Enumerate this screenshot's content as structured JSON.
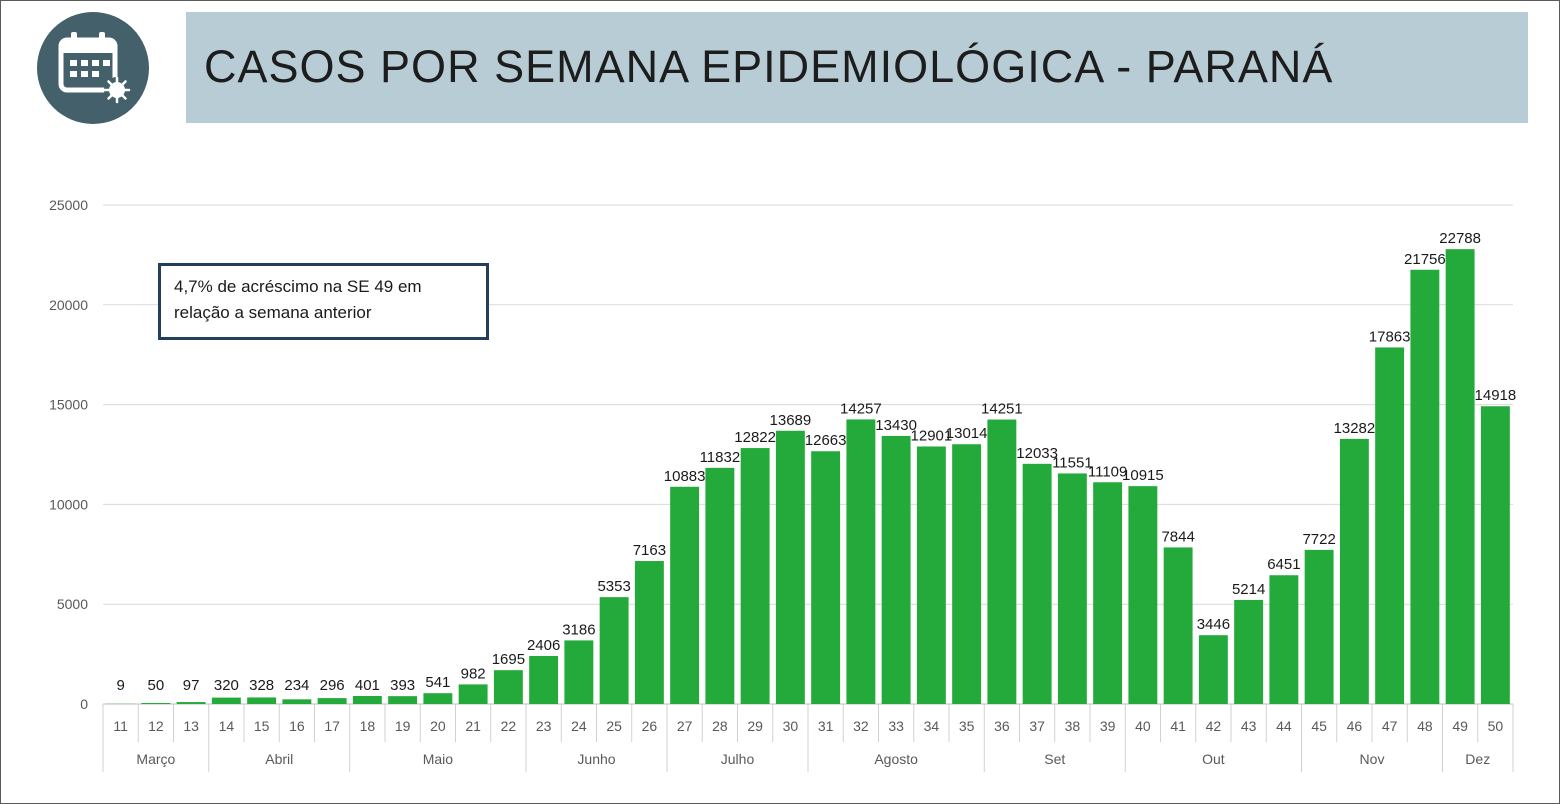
{
  "header": {
    "title": "CASOS POR SEMANA EPIDEMIOLÓGICA - PARANÁ",
    "icon": "calendar-virus-icon",
    "title_bg": "#b7ccd5",
    "icon_bg": "#44606a"
  },
  "annotation": {
    "text": "4,7% de acréscimo na SE 49 em relação a semana anterior"
  },
  "chart_data": {
    "type": "bar",
    "bar_color": "#23aa3b",
    "categories": [
      "11",
      "12",
      "13",
      "14",
      "15",
      "16",
      "17",
      "18",
      "19",
      "20",
      "21",
      "22",
      "23",
      "24",
      "25",
      "26",
      "27",
      "28",
      "29",
      "30",
      "31",
      "32",
      "33",
      "34",
      "35",
      "36",
      "37",
      "38",
      "39",
      "40",
      "41",
      "42",
      "43",
      "44",
      "45",
      "46",
      "47",
      "48",
      "49",
      "50"
    ],
    "values": [
      9,
      50,
      97,
      320,
      328,
      234,
      296,
      401,
      393,
      541,
      982,
      1695,
      2406,
      3186,
      5353,
      7163,
      10883,
      11832,
      12822,
      13689,
      12663,
      14257,
      13430,
      12901,
      13014,
      14251,
      12033,
      11551,
      11109,
      10915,
      7844,
      3446,
      5214,
      6451,
      7722,
      13282,
      17863,
      21756,
      22788,
      14918
    ],
    "ylim": [
      0,
      25000
    ],
    "yticks": [
      0,
      5000,
      10000,
      15000,
      20000,
      25000
    ],
    "months": [
      {
        "label": "Março",
        "start": 0,
        "end": 2
      },
      {
        "label": "Abril",
        "start": 3,
        "end": 6
      },
      {
        "label": "Maio",
        "start": 7,
        "end": 11
      },
      {
        "label": "Junho",
        "start": 12,
        "end": 15
      },
      {
        "label": "Julho",
        "start": 16,
        "end": 19
      },
      {
        "label": "Agosto",
        "start": 20,
        "end": 24
      },
      {
        "label": "Set",
        "start": 25,
        "end": 28
      },
      {
        "label": "Out",
        "start": 29,
        "end": 33
      },
      {
        "label": "Nov",
        "start": 34,
        "end": 37
      },
      {
        "label": "Dez",
        "start": 38,
        "end": 39
      }
    ],
    "grid": true,
    "legend": "none"
  }
}
